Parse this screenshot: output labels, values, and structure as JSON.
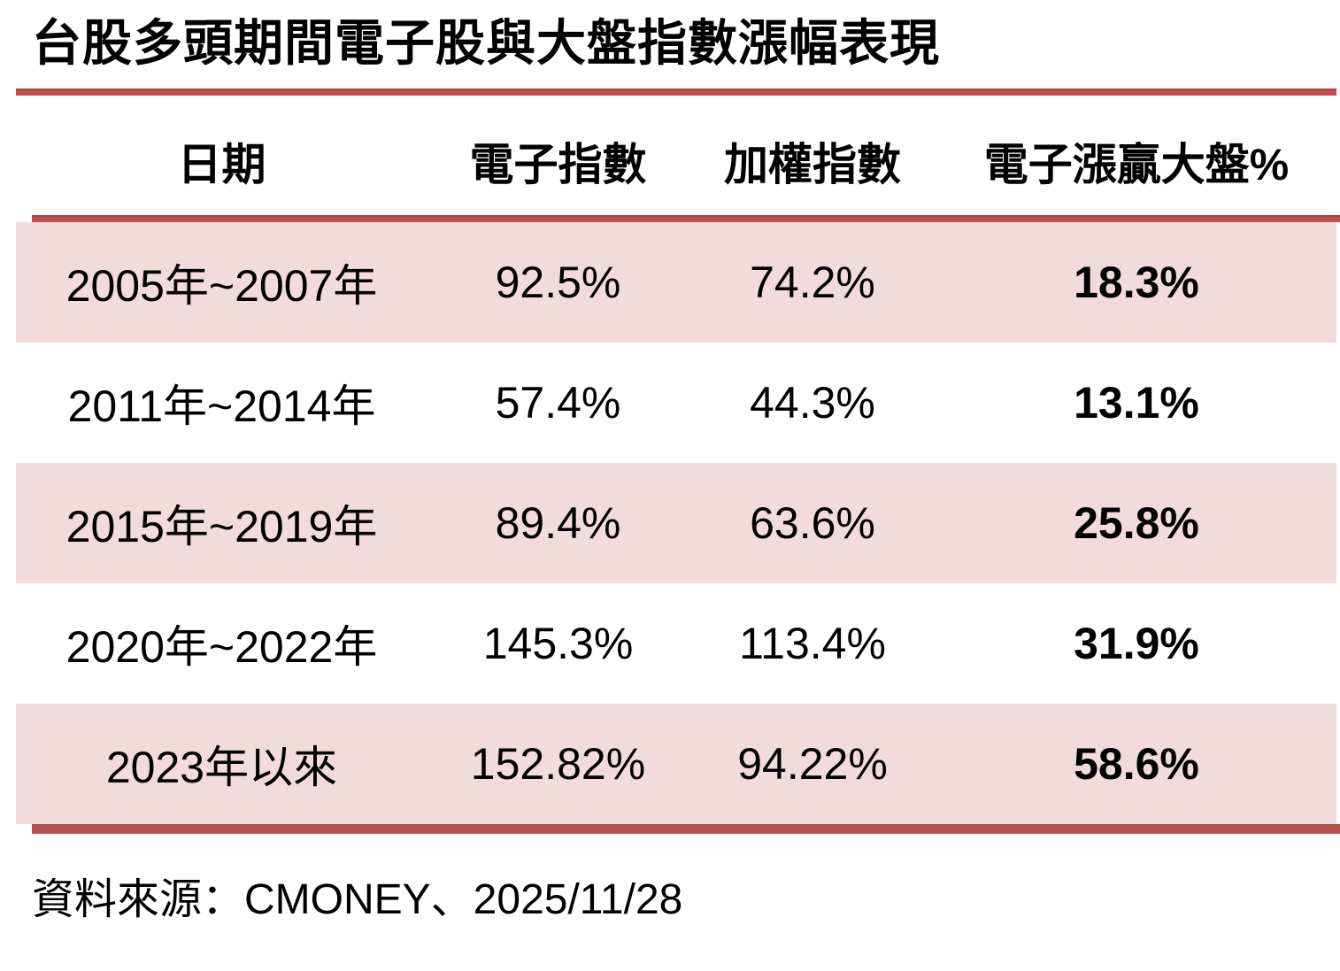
{
  "title": "台股多頭期間電子股與大盤指數漲幅表現",
  "source_note": "資料來源：CMONEY、2025/11/28",
  "colors": {
    "accent_rule_red": "#C0504D",
    "bottom_rule_red": "#B5534F",
    "row_shade_pink": "#F2DCDB",
    "text": "#000000",
    "background": "#FFFFFF"
  },
  "chart_data": {
    "type": "table",
    "title": "台股多頭期間電子股與大盤指數漲幅表現",
    "columns": [
      "日期",
      "電子指數",
      "加權指數",
      "電子漲贏大盤%"
    ],
    "rows": [
      [
        "2005年~2007年",
        "92.5%",
        "74.2%",
        "18.3%"
      ],
      [
        "2011年~2014年",
        "57.4%",
        "44.3%",
        "13.1%"
      ],
      [
        "2015年~2019年",
        "89.4%",
        "63.6%",
        "25.8%"
      ],
      [
        "2020年~2022年",
        "145.3%",
        "113.4%",
        "31.9%"
      ],
      [
        "2023年以來",
        "152.82%",
        "94.22%",
        "58.6%"
      ]
    ],
    "notes": {
      "shaded_row_indices": [
        0,
        2,
        4
      ],
      "bold_column_index": 3,
      "source": "資料來源：CMONEY、2025/11/28"
    }
  }
}
